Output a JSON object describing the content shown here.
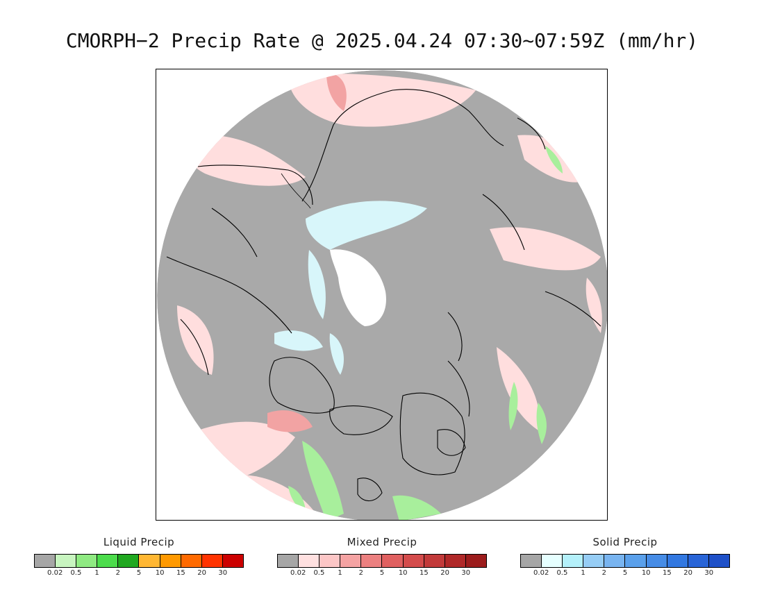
{
  "title": "CMORPH−2 Precip Rate @ 2025.04.24 07:30~07:59Z (mm/hr)",
  "colors": {
    "no_data": "#a9a9a9",
    "land_outline": "#000000",
    "core": "#ffffff"
  },
  "legends": [
    {
      "label": "Liquid Precip",
      "colors": [
        "#a6a6a6",
        "#c8f5c0",
        "#8fea82",
        "#4cdc4c",
        "#20a820",
        "#ffb733",
        "#ff9900",
        "#ff6a00",
        "#ff3300",
        "#cc0000"
      ],
      "ticks": [
        "0.02",
        "0.5",
        "1",
        "2",
        "5",
        "10",
        "15",
        "20",
        "30"
      ]
    },
    {
      "label": "Mixed Precip",
      "colors": [
        "#a6a6a6",
        "#ffe0e0",
        "#fcc6c6",
        "#f5a3a3",
        "#ec8080",
        "#e06060",
        "#d44c4c",
        "#c23a3a",
        "#b02828",
        "#9c1c1c"
      ],
      "ticks": [
        "0.02",
        "0.5",
        "1",
        "2",
        "5",
        "10",
        "15",
        "20",
        "30"
      ]
    },
    {
      "label": "Solid Precip",
      "colors": [
        "#a6a6a6",
        "#e6ffff",
        "#b4f0fa",
        "#96cdf5",
        "#78b4f0",
        "#5aa0eb",
        "#468ce6",
        "#3278e1",
        "#2864d7",
        "#1e50c8"
      ],
      "ticks": [
        "0.02",
        "0.5",
        "1",
        "2",
        "5",
        "10",
        "15",
        "20",
        "30"
      ]
    }
  ]
}
